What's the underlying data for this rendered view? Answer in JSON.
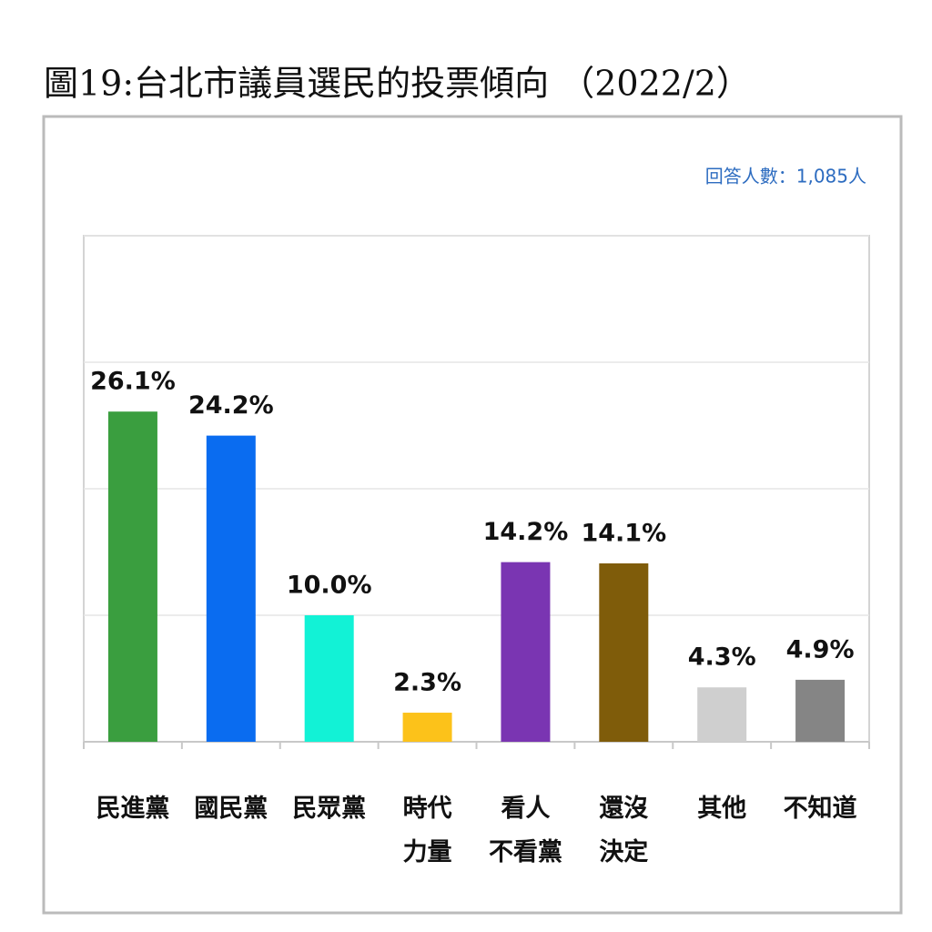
{
  "chart_data": {
    "type": "bar",
    "title": "圖19:台北市議員選民的投票傾向 （2022/2）",
    "note": "回答人數：1,085人",
    "categories": [
      "民進黨",
      "國民黨",
      "民眾黨",
      "時代\n力量",
      "看人\n不看黨",
      "還沒\n決定",
      "其他",
      "不知道"
    ],
    "values": [
      26.1,
      24.2,
      10.0,
      2.3,
      14.2,
      14.1,
      4.3,
      4.9
    ],
    "value_labels": [
      "26.1%",
      "24.2%",
      "10.0%",
      "2.3%",
      "14.2%",
      "14.1%",
      "4.3%",
      "4.9%"
    ],
    "colors": [
      "#3a9e3f",
      "#0a6cf0",
      "#12f2d6",
      "#fcc21a",
      "#7a35b2",
      "#7f5c0a",
      "#cfcfcf",
      "#858585"
    ],
    "ylim": [
      0,
      40
    ],
    "yticks": [
      0,
      10,
      20,
      30,
      40
    ],
    "grid": true
  }
}
